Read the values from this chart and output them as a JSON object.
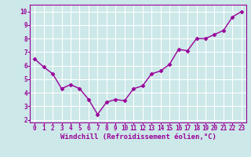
{
  "x": [
    0,
    1,
    2,
    3,
    4,
    5,
    6,
    7,
    8,
    9,
    10,
    11,
    12,
    13,
    14,
    15,
    16,
    17,
    18,
    19,
    20,
    21,
    22,
    23
  ],
  "y": [
    6.5,
    5.9,
    5.4,
    4.3,
    4.6,
    4.3,
    3.5,
    2.4,
    3.3,
    3.5,
    3.4,
    4.3,
    4.5,
    5.4,
    5.6,
    6.1,
    7.2,
    7.1,
    8.0,
    8.0,
    8.3,
    8.6,
    9.6,
    10.0
  ],
  "line_color": "#990099",
  "marker": "D",
  "marker_size": 2.5,
  "line_width": 1,
  "bg_color": "#cce8e8",
  "grid_color": "#ffffff",
  "xlabel": "Windchill (Refroidissement éolien,°C)",
  "xlabel_color": "#990099",
  "tick_color": "#990099",
  "spine_color": "#990099",
  "xlim": [
    -0.5,
    23.5
  ],
  "ylim": [
    1.8,
    10.5
  ],
  "yticks": [
    2,
    3,
    4,
    5,
    6,
    7,
    8,
    9,
    10
  ],
  "xticks": [
    0,
    1,
    2,
    3,
    4,
    5,
    6,
    7,
    8,
    9,
    10,
    11,
    12,
    13,
    14,
    15,
    16,
    17,
    18,
    19,
    20,
    21,
    22,
    23
  ],
  "label_fontsize": 6.5,
  "tick_fontsize": 5.5
}
